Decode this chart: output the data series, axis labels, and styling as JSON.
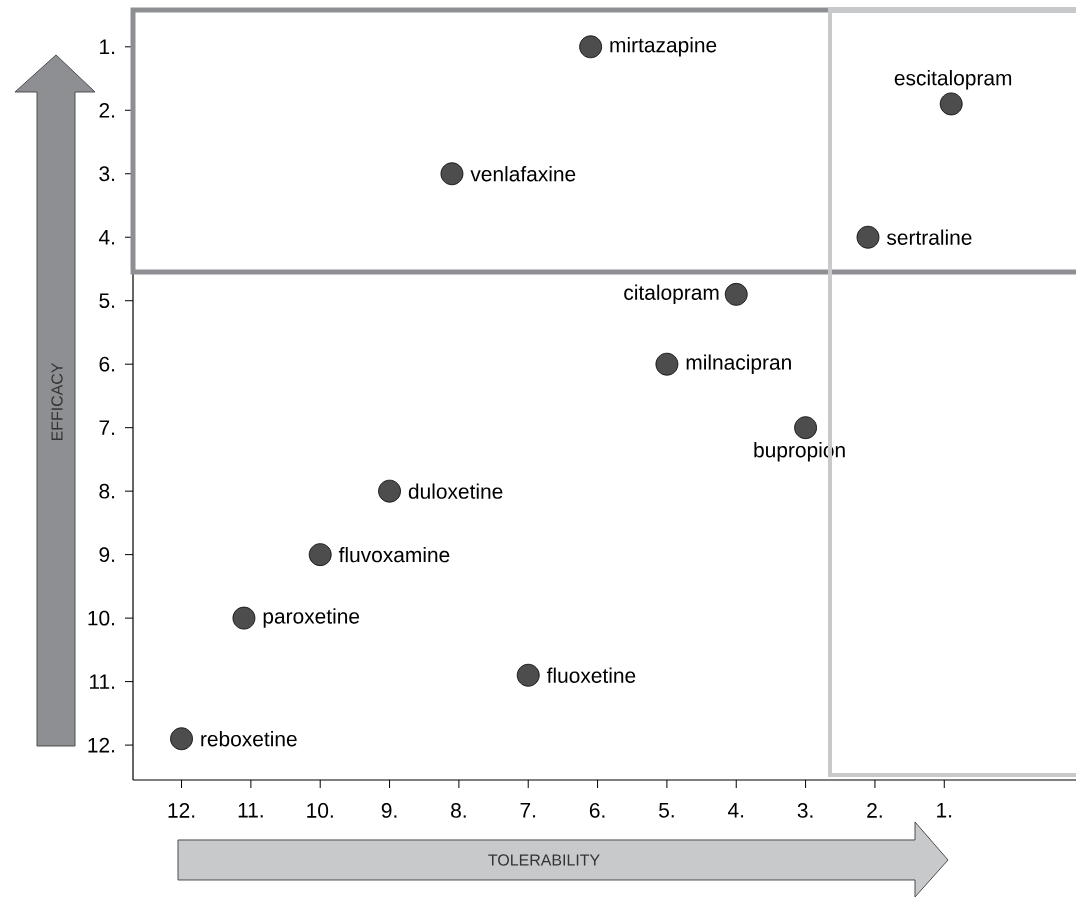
{
  "chart_data": {
    "type": "scatter",
    "xlabel": "TOLERABILITY",
    "ylabel": "EFFICACY",
    "xlim": [
      12.7,
      -0.9
    ],
    "ylim": [
      12.55,
      0.42
    ],
    "xticks": [
      {
        "value": 12,
        "label": "12."
      },
      {
        "value": 11,
        "label": "11."
      },
      {
        "value": 10,
        "label": "10."
      },
      {
        "value": 9,
        "label": "9."
      },
      {
        "value": 8,
        "label": "8."
      },
      {
        "value": 7,
        "label": "7."
      },
      {
        "value": 6,
        "label": "6."
      },
      {
        "value": 5,
        "label": "5."
      },
      {
        "value": 4,
        "label": "4."
      },
      {
        "value": 3,
        "label": "3."
      },
      {
        "value": 2,
        "label": "2."
      },
      {
        "value": 1,
        "label": "1."
      }
    ],
    "yticks": [
      {
        "value": 1,
        "label": "1."
      },
      {
        "value": 2,
        "label": "2."
      },
      {
        "value": 3,
        "label": "3."
      },
      {
        "value": 4,
        "label": "4."
      },
      {
        "value": 5,
        "label": "5."
      },
      {
        "value": 6,
        "label": "6."
      },
      {
        "value": 7,
        "label": "7."
      },
      {
        "value": 8,
        "label": "8."
      },
      {
        "value": 9,
        "label": "9."
      },
      {
        "value": 10,
        "label": "10."
      },
      {
        "value": 11,
        "label": "11."
      },
      {
        "value": 12,
        "label": "12."
      }
    ],
    "series": [
      {
        "color": "#4d4d4d",
        "x": [
          6.1,
          0.9,
          8.1,
          2.1,
          4.0,
          5.0,
          3.0,
          9.0,
          10.0,
          11.1,
          7.0,
          12.0
        ],
        "values": [
          1.0,
          1.9,
          3.0,
          4.0,
          4.9,
          6.0,
          7.0,
          8.0,
          9.0,
          10.0,
          10.9,
          11.9
        ]
      }
    ],
    "annotations": [
      {
        "text": "mirtazapine",
        "x": 6.1,
        "y": 1.0
      },
      {
        "text": "escitalopram",
        "x": 0.9,
        "y": 1.9
      },
      {
        "text": "venlafaxine",
        "x": 8.1,
        "y": 3.0
      },
      {
        "text": "sertraline",
        "x": 2.1,
        "y": 4.0
      },
      {
        "text": "citalopram",
        "x": 4.0,
        "y": 4.9
      },
      {
        "text": "milnacipran",
        "x": 5.0,
        "y": 6.0
      },
      {
        "text": "bupropion",
        "x": 3.0,
        "y": 7.0
      },
      {
        "text": "duloxetine",
        "x": 9.0,
        "y": 8.0
      },
      {
        "text": "fluvoxamine",
        "x": 10.0,
        "y": 9.0
      },
      {
        "text": "paroxetine",
        "x": 11.1,
        "y": 10.0
      },
      {
        "text": "fluoxetine",
        "x": 7.0,
        "y": 10.9
      },
      {
        "text": "reboxetine",
        "x": 12.0,
        "y": 11.9
      }
    ]
  }
}
